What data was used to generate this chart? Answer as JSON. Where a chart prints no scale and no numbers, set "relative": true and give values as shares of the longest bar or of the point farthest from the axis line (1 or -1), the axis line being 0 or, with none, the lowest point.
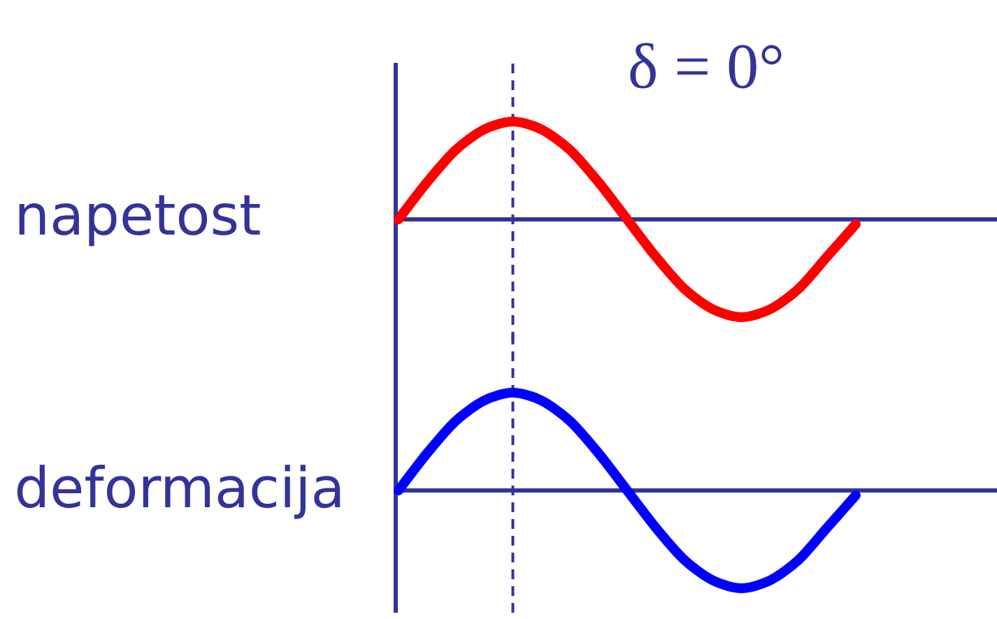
{
  "chart_data": [
    {
      "type": "line",
      "title": "δ = 0°",
      "relative": true,
      "categories": [
        null,
        null,
        null,
        null,
        null,
        null,
        null,
        null,
        null,
        null,
        null,
        null,
        null,
        null,
        null,
        null,
        null
      ],
      "series": [
        {
          "name": "napetost",
          "color": "#ff0000",
          "values": [
            0,
            0.38,
            0.71,
            0.92,
            1,
            0.92,
            0.71,
            0.38,
            0,
            -0.38,
            -0.71,
            -0.92,
            -1,
            -0.92,
            -0.71,
            -0.38,
            -0.05
          ]
        }
      ],
      "ref_lines": [
        {
          "axis": "y",
          "value": 0,
          "color": "#333399",
          "line_style": "solid"
        }
      ]
    },
    {
      "type": "line",
      "relative": true,
      "categories": [
        null,
        null,
        null,
        null,
        null,
        null,
        null,
        null,
        null,
        null,
        null,
        null,
        null,
        null,
        null,
        null,
        null
      ],
      "series": [
        {
          "name": "deformacija",
          "color": "#0000ff",
          "values": [
            0,
            0.38,
            0.71,
            0.92,
            1,
            0.92,
            0.71,
            0.38,
            0,
            -0.38,
            -0.71,
            -0.92,
            -1,
            -0.92,
            -0.71,
            -0.38,
            -0.05
          ]
        }
      ],
      "ref_lines": [
        {
          "axis": "y",
          "value": 0,
          "color": "#333399",
          "line_style": "solid"
        }
      ]
    }
  ]
}
